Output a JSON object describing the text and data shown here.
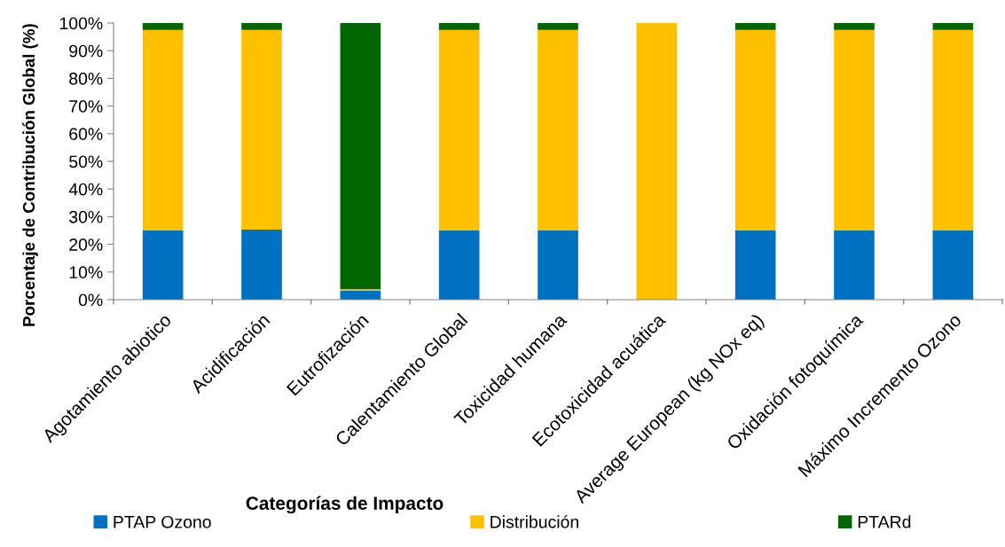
{
  "chart_data": {
    "type": "bar",
    "stacked": true,
    "xlabel": "Categorías de Impacto",
    "ylabel": "Porcentaje de Contribución Global (%)",
    "categories": [
      "Agotamiento abiotico",
      "Acidificación",
      "Eutrofización",
      "Calentamiento Global",
      "Toxicidad humana",
      "Ecotoxicidad acuática",
      "Average European (kg NOx eq)",
      "Oxidación fotoquímica",
      "Máximo Incremento Ozono"
    ],
    "series": [
      {
        "name": "PTAP Ozono",
        "color": "#0070c0",
        "values": [
          25,
          25.3,
          3.3,
          25,
          25,
          0,
          25,
          25,
          25
        ]
      },
      {
        "name": "Distribución",
        "color": "#ffc000",
        "values": [
          72.5,
          72.2,
          0.5,
          72.5,
          72.5,
          100,
          72.5,
          72.5,
          72.5
        ]
      },
      {
        "name": "PTARd",
        "color": "#006600",
        "values": [
          2.5,
          2.5,
          96.2,
          2.5,
          2.5,
          0,
          2.5,
          2.5,
          2.5
        ]
      }
    ],
    "ylim": [
      0,
      100
    ],
    "yticks": [
      {
        "value": 0,
        "label": "0%"
      },
      {
        "value": 10,
        "label": "10%"
      },
      {
        "value": 20,
        "label": "20%"
      },
      {
        "value": 30,
        "label": "30%"
      },
      {
        "value": 40,
        "label": "40%"
      },
      {
        "value": 50,
        "label": "50%"
      },
      {
        "value": 60,
        "label": "60%"
      },
      {
        "value": 70,
        "label": "70%"
      },
      {
        "value": 80,
        "label": "80%"
      },
      {
        "value": 90,
        "label": "90%"
      },
      {
        "value": 100,
        "label": "100%"
      }
    ],
    "grid": false,
    "legend": "bottom"
  }
}
